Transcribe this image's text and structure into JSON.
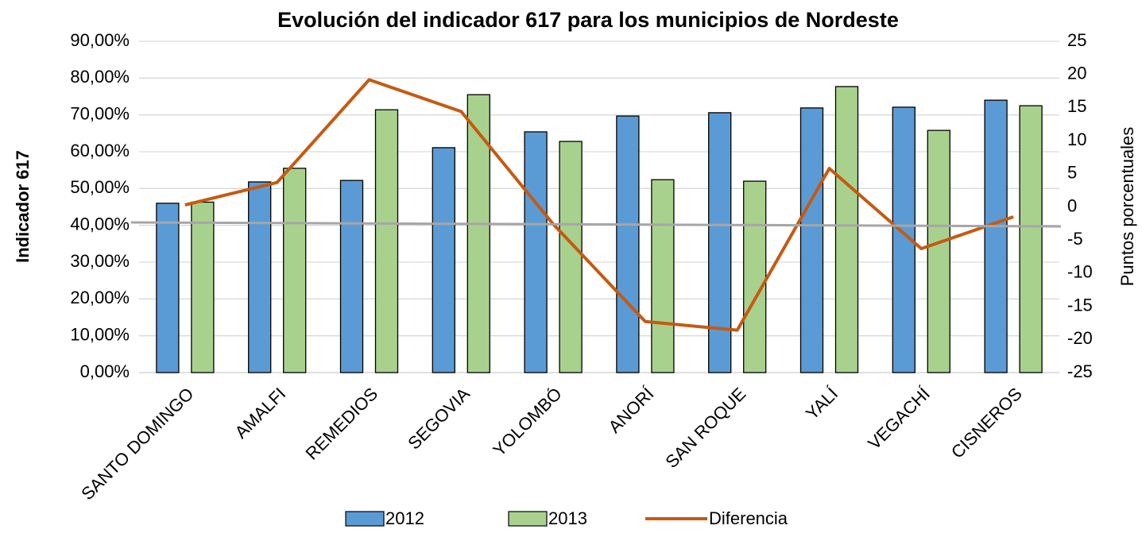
{
  "chart_data": {
    "type": "bar",
    "title": "Evolución del indicador 617 para los municipios de Nordeste",
    "y_label": "Indicador 617",
    "y2_label": "Puntos porcentuales",
    "categories": [
      "SANTO DOMINGO",
      "AMALFI",
      "REMEDIOS",
      "SEGOVIA",
      "YOLOMBÓ",
      "ANORÍ",
      "SAN ROQUE",
      "YALÍ",
      "VEGACHÍ",
      "CISNEROS"
    ],
    "series": [
      {
        "name": "2012",
        "type": "bar",
        "color": "#5b9bd5",
        "values": [
          46.0,
          51.8,
          52.2,
          61.1,
          65.4,
          69.7,
          70.6,
          71.9,
          72.1,
          74.0
        ]
      },
      {
        "name": "2013",
        "type": "bar",
        "color": "#a9d18e",
        "values": [
          46.3,
          55.5,
          71.4,
          75.5,
          62.8,
          52.4,
          52.0,
          77.7,
          65.8,
          72.5
        ]
      },
      {
        "name": "Diferencia",
        "type": "line",
        "axis": "y2",
        "color": "#c55a11",
        "values": [
          0.3,
          3.7,
          19.2,
          14.4,
          -2.6,
          -17.3,
          -18.6,
          5.8,
          -6.3,
          -1.5
        ]
      }
    ],
    "ylim": [
      0,
      90
    ],
    "yticks": [
      {
        "value": 0,
        "label": "0,00%"
      },
      {
        "value": 10,
        "label": "10,00%"
      },
      {
        "value": 20,
        "label": "20,00%"
      },
      {
        "value": 30,
        "label": "30,00%"
      },
      {
        "value": 40,
        "label": "40,00%"
      },
      {
        "value": 50,
        "label": "50,00%"
      },
      {
        "value": 60,
        "label": "60,00%"
      },
      {
        "value": 70,
        "label": "70,00%"
      },
      {
        "value": 80,
        "label": "80,00%"
      },
      {
        "value": 90,
        "label": "90,00%"
      }
    ],
    "y2lim": [
      -25,
      25
    ],
    "y2ticks": [
      -25,
      -20,
      -15,
      -10,
      -5,
      0,
      5,
      10,
      15,
      20,
      25
    ],
    "grid": true
  }
}
